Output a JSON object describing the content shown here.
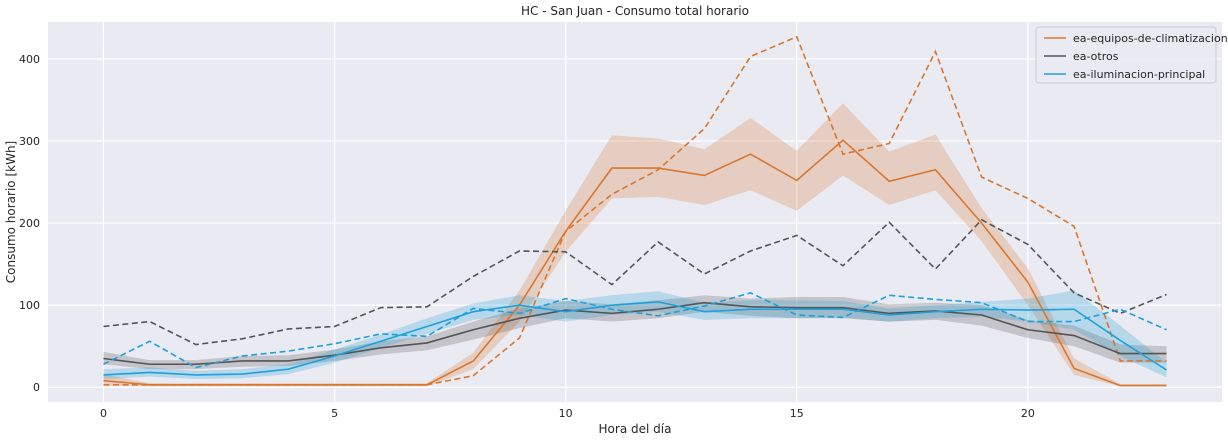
{
  "chart_data": {
    "type": "line",
    "title": "HC - San Juan - Consumo total horario",
    "xlabel": "Hora del día",
    "ylabel": "Consumo horario [kWh]",
    "xlim": [
      -1.2,
      24.2
    ],
    "ylim": [
      -18,
      445
    ],
    "xticks": [
      0,
      5,
      10,
      15,
      20
    ],
    "yticks": [
      0,
      100,
      200,
      300,
      400
    ],
    "grid": true,
    "legend_position": "top-right",
    "x": [
      0,
      1,
      2,
      3,
      4,
      5,
      6,
      7,
      8,
      9,
      10,
      11,
      12,
      13,
      14,
      15,
      16,
      17,
      18,
      19,
      20,
      21,
      22,
      23
    ],
    "series": [
      {
        "name": "ea-equipos-de-climatizacion",
        "color": "#d9772f",
        "mean": [
          8,
          3,
          3,
          3,
          3,
          3,
          3,
          3,
          32,
          100,
          190,
          267,
          267,
          258,
          284,
          252,
          301,
          251,
          265,
          200,
          128,
          23,
          2,
          2
        ],
        "lower": [
          2,
          1,
          1,
          1,
          1,
          1,
          1,
          1,
          22,
          80,
          165,
          230,
          232,
          222,
          240,
          215,
          258,
          222,
          240,
          178,
          100,
          15,
          1,
          1
        ],
        "upper": [
          16,
          5,
          5,
          5,
          5,
          5,
          5,
          5,
          42,
          118,
          215,
          307,
          303,
          290,
          328,
          288,
          346,
          287,
          308,
          218,
          145,
          35,
          4,
          4
        ],
        "reference": [
          3,
          3,
          3,
          3,
          3,
          3,
          3,
          3,
          14,
          60,
          190,
          235,
          265,
          315,
          403,
          427,
          284,
          297,
          409,
          256,
          230,
          196,
          32,
          32
        ]
      },
      {
        "name": "ea-otros",
        "color": "#555555",
        "mean": [
          35,
          28,
          28,
          32,
          32,
          39,
          48,
          54,
          70,
          84,
          94,
          90,
          95,
          103,
          98,
          97,
          97,
          90,
          93,
          88,
          70,
          63,
          41,
          41
        ],
        "lower": [
          28,
          22,
          22,
          25,
          26,
          32,
          40,
          45,
          58,
          72,
          84,
          80,
          84,
          92,
          87,
          84,
          84,
          80,
          82,
          75,
          60,
          50,
          30,
          30
        ],
        "upper": [
          43,
          33,
          33,
          38,
          39,
          46,
          56,
          62,
          80,
          96,
          105,
          101,
          106,
          112,
          108,
          110,
          110,
          101,
          103,
          100,
          82,
          75,
          52,
          50
        ],
        "reference": [
          74,
          80,
          52,
          59,
          71,
          74,
          97,
          98,
          135,
          166,
          165,
          125,
          177,
          138,
          166,
          185,
          148,
          201,
          144,
          204,
          174,
          115,
          90,
          113
        ]
      },
      {
        "name": "ea-iluminacion-principal",
        "color": "#1ea1d9",
        "mean": [
          15,
          18,
          15,
          16,
          22,
          38,
          56,
          74,
          92,
          100,
          92,
          100,
          104,
          92,
          95,
          95,
          95,
          88,
          92,
          95,
          94,
          95,
          57,
          21
        ],
        "lower": [
          10,
          13,
          10,
          11,
          16,
          30,
          48,
          65,
          82,
          88,
          80,
          88,
          92,
          82,
          84,
          84,
          85,
          80,
          84,
          86,
          80,
          70,
          38,
          12
        ],
        "upper": [
          22,
          24,
          20,
          22,
          28,
          46,
          64,
          84,
          102,
          112,
          105,
          112,
          117,
          103,
          106,
          106,
          105,
          96,
          100,
          104,
          108,
          118,
          75,
          30
        ],
        "reference": [
          28,
          56,
          24,
          38,
          44,
          53,
          65,
          62,
          96,
          90,
          108,
          95,
          87,
          99,
          115,
          88,
          85,
          112,
          107,
          103,
          80,
          80,
          95,
          70
        ]
      }
    ]
  }
}
